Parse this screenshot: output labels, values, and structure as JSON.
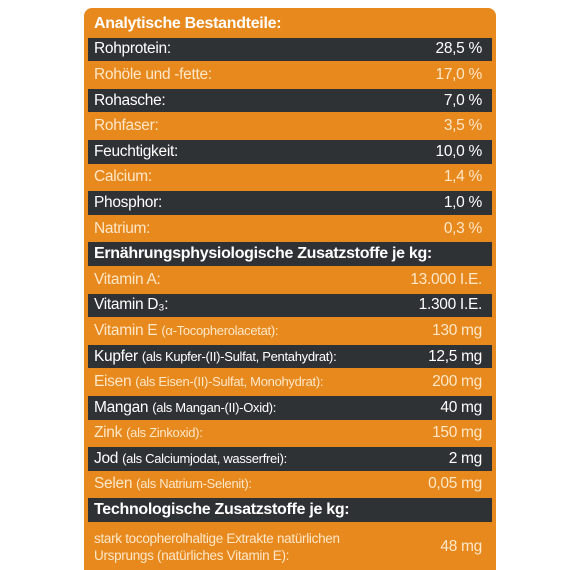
{
  "sections": [
    {
      "title": "Analytische Bestandteile:",
      "rows": [
        {
          "label": "Rohprotein:",
          "value": "28,5 %"
        },
        {
          "label": "Rohöle und -fette:",
          "value": "17,0 %"
        },
        {
          "label": "Rohasche:",
          "value": "7,0 %"
        },
        {
          "label": "Rohfaser:",
          "value": "3,5 %"
        },
        {
          "label": "Feuchtigkeit:",
          "value": "10,0 %"
        },
        {
          "label": "Calcium:",
          "value": "1,4 %"
        },
        {
          "label": "Phosphor:",
          "value": "1,0 %"
        },
        {
          "label": "Natrium:",
          "value": "0,3 %"
        }
      ]
    },
    {
      "title": "Ernährungsphysiologische Zusatzstoffe je kg:",
      "rows": [
        {
          "label": "Vitamin A:",
          "value": "13.000 I.E."
        },
        {
          "label": "Vitamin D₃:",
          "value": "1.300 I.E."
        },
        {
          "label": "Vitamin E",
          "note": "(α-Tocopherolacetat):",
          "value": "130 mg"
        },
        {
          "label": "Kupfer",
          "note": "(als Kupfer-(II)-Sulfat, Pentahydrat):",
          "value": "12,5 mg"
        },
        {
          "label": "Eisen",
          "note": "(als Eisen-(II)-Sulfat, Monohydrat):",
          "value": "200 mg"
        },
        {
          "label": "Mangan",
          "note": "(als Mangan-(II)-Oxid):",
          "value": "40 mg"
        },
        {
          "label": "Zink",
          "note": "(als Zinkoxid):",
          "value": "150 mg"
        },
        {
          "label": "Jod",
          "note": "(als Calciumjodat, wasserfrei):",
          "value": "2 mg"
        },
        {
          "label": "Selen",
          "note": "(als Natrium-Selenit):",
          "value": "0,05 mg"
        }
      ]
    },
    {
      "title": "Technologische Zusatzstoffe je kg:",
      "rows": [
        {
          "lines": [
            "stark tocopherolhaltige Extrakte natürlichen",
            "Ursprungs (natürliches Vitamin E):"
          ],
          "value": "48 mg"
        }
      ]
    }
  ]
}
